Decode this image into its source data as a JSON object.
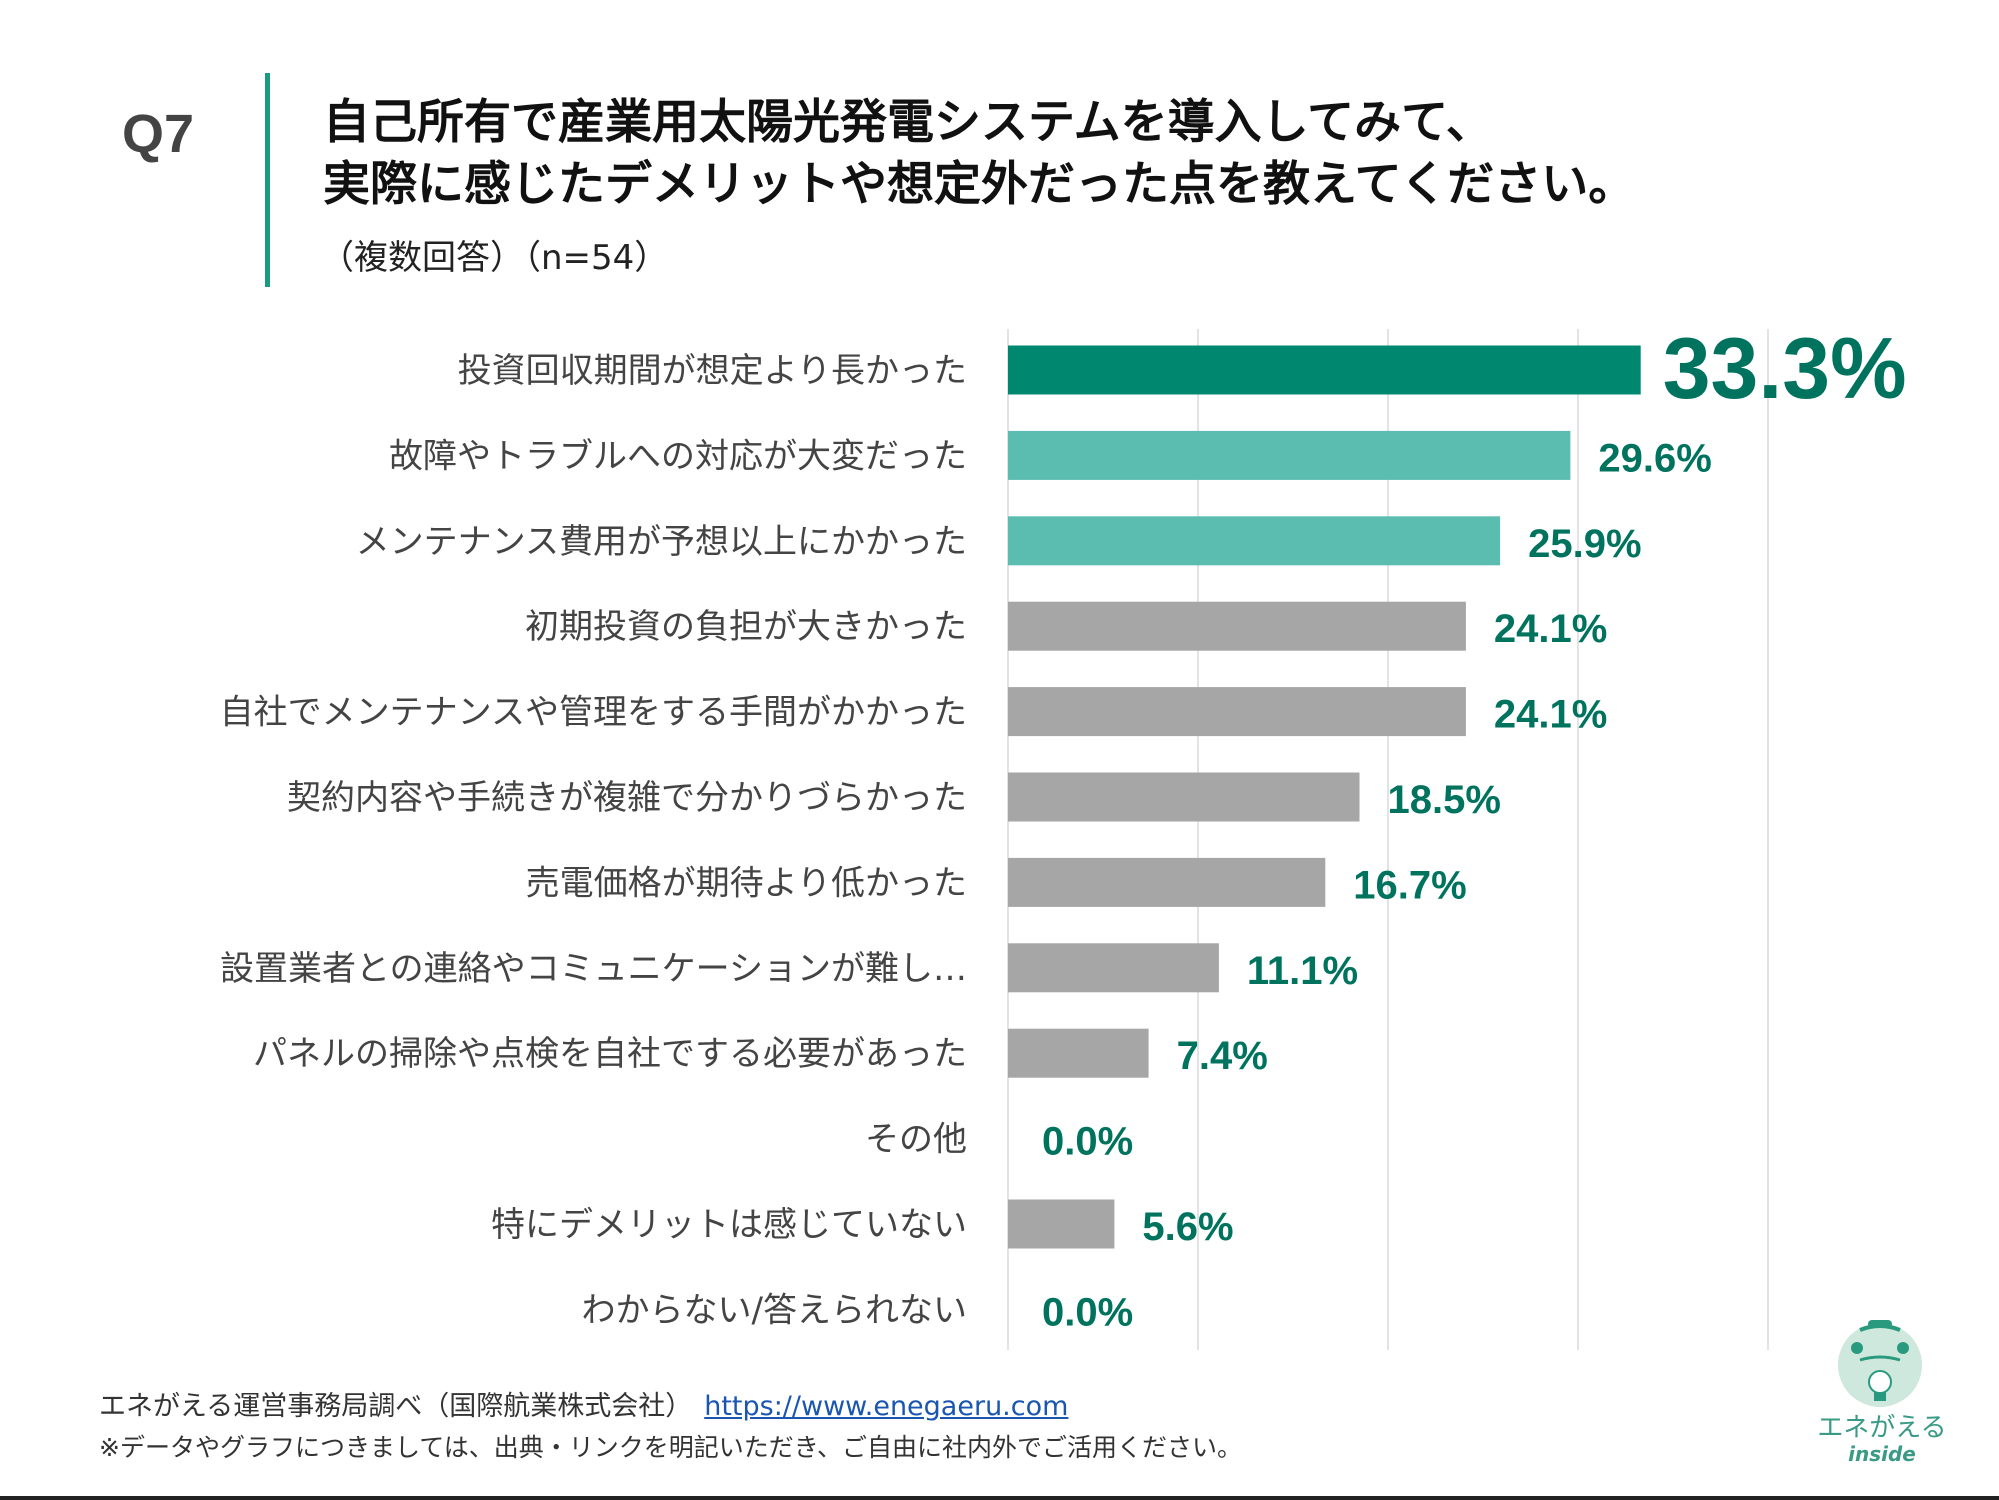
{
  "header": {
    "question_number": "Q7",
    "title_line1": "自己所有で産業用太陽光発電システムを導入してみて、",
    "title_line2": "実際に感じたデメリットや想定外だった点を教えてください。",
    "subtitle": "（複数回答）（n=54）"
  },
  "chart_data": {
    "type": "bar",
    "orientation": "horizontal",
    "categories": [
      "投資回収期間が想定より長かった",
      "故障やトラブルへの対応が大変だった",
      "メンテナンス費用が予想以上にかかった",
      "初期投資の負担が大きかった",
      "自社でメンテナンスや管理をする手間がかかった",
      "契約内容や手続きが複雑で分かりづらかった",
      "売電価格が期待より低かった",
      "設置業者との連絡やコミュニケーションが難し…",
      "パネルの掃除や点検を自社でする必要があった",
      "その他",
      "特にデメリットは感じていない",
      "わからない/答えられない"
    ],
    "values": [
      33.3,
      29.6,
      25.9,
      24.1,
      24.1,
      18.5,
      16.7,
      11.1,
      7.4,
      0.0,
      5.6,
      0.0
    ],
    "value_labels": [
      "33.3%",
      "29.6%",
      "25.9%",
      "24.1%",
      "24.1%",
      "18.5%",
      "16.7%",
      "11.1%",
      "7.4%",
      "0.0%",
      "5.6%",
      "0.0%"
    ],
    "bar_colors": [
      "#00876f",
      "#5bbcb0",
      "#5bbcb0",
      "#a6a6a6",
      "#a6a6a6",
      "#a6a6a6",
      "#a6a6a6",
      "#a6a6a6",
      "#a6a6a6",
      "#a6a6a6",
      "#a6a6a6",
      "#a6a6a6"
    ],
    "label_color": "#00735e",
    "xlim": [
      0,
      40
    ],
    "grid": true,
    "axis_tick_labels_shown": false
  },
  "footer": {
    "source": "エネがえる運営事務局調べ（国際航業株式会社）",
    "link": "https://www.enegaeru.com",
    "note": "※データやグラフにつきましては、出典・リンクを明記いただき、ご自由に社内外でご活用ください。"
  },
  "logo": {
    "name": "エネがえる",
    "sub": "inside"
  }
}
